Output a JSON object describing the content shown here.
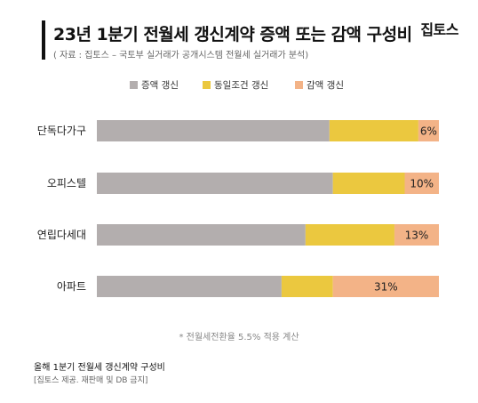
{
  "header": {
    "title": "23년 1분기 전월세 갱신계약 증액 또는 감액 구성비",
    "subtitle": "( 자료 : 집토스 – 국토부 실거래가 공개시스템 전월세 실거래가 분석)",
    "brand": "집토스"
  },
  "footnote": "* 전월세전환율 5.5% 적용 계산",
  "caption": "올해 1분기 전월세 갱신계약 구성비",
  "credit": "[집토스 제공. 재판매 및 DB 금지]",
  "colors": {
    "increase": "#b3aeae",
    "same": "#ebc83f",
    "decrease": "#f3b387"
  },
  "chart_data": {
    "type": "bar",
    "orientation": "horizontal",
    "stacked": true,
    "categories": [
      "단독다가구",
      "오피스텔",
      "연립다세대",
      "아파트"
    ],
    "series": [
      {
        "name": "증액 갱신",
        "values": [
          68,
          69,
          61,
          54
        ]
      },
      {
        "name": "동일조건 갱신",
        "values": [
          26,
          21,
          26,
          15
        ]
      },
      {
        "name": "감액 갱신",
        "values": [
          6,
          10,
          13,
          31
        ]
      }
    ],
    "data_labels": [
      "6%",
      "10%",
      "13%",
      "31%"
    ],
    "xlim": [
      0,
      100
    ],
    "legend_position": "top",
    "grid": false
  }
}
